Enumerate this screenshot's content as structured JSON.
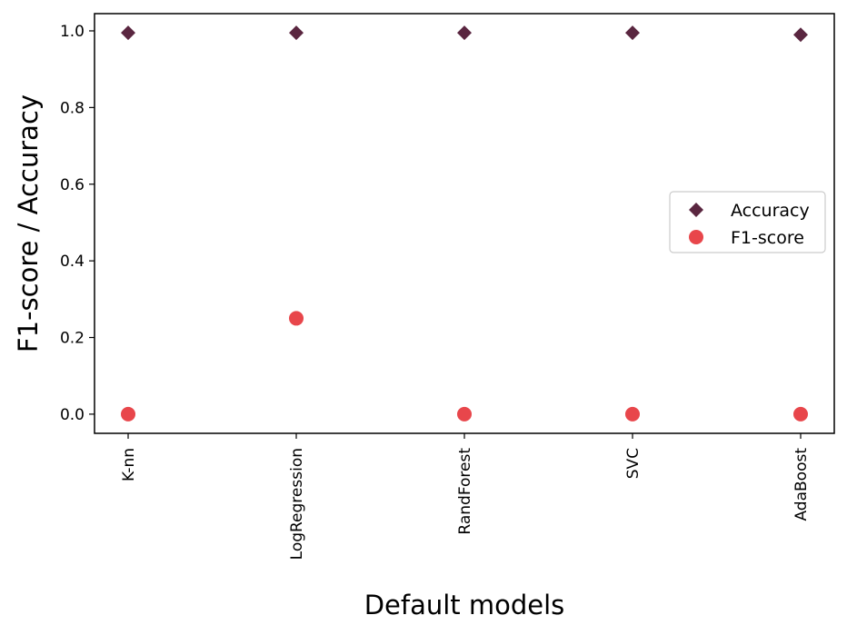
{
  "chart_data": {
    "type": "scatter",
    "categories": [
      "K-nn",
      "LogRegression",
      "RandForest",
      "SVC",
      "AdaBoost"
    ],
    "series": [
      {
        "name": "Accuracy",
        "marker": "diamond",
        "color": "#5a2640",
        "values": [
          0.995,
          0.995,
          0.995,
          0.995,
          0.99
        ]
      },
      {
        "name": "F1-score",
        "marker": "circle",
        "color": "#e8464b",
        "values": [
          0.0,
          0.25,
          0.0,
          0.0,
          0.0
        ]
      }
    ],
    "xlabel": "Default models",
    "ylabel": "F1-score / Accuracy",
    "ylim": [
      -0.05,
      1.045
    ],
    "yticks": [
      0.0,
      0.2,
      0.4,
      0.6,
      0.8,
      1.0
    ],
    "ytick_labels": [
      "0.0",
      "0.2",
      "0.4",
      "0.6",
      "0.8",
      "1.0"
    ],
    "grid": false,
    "legend_position": "center-right"
  }
}
